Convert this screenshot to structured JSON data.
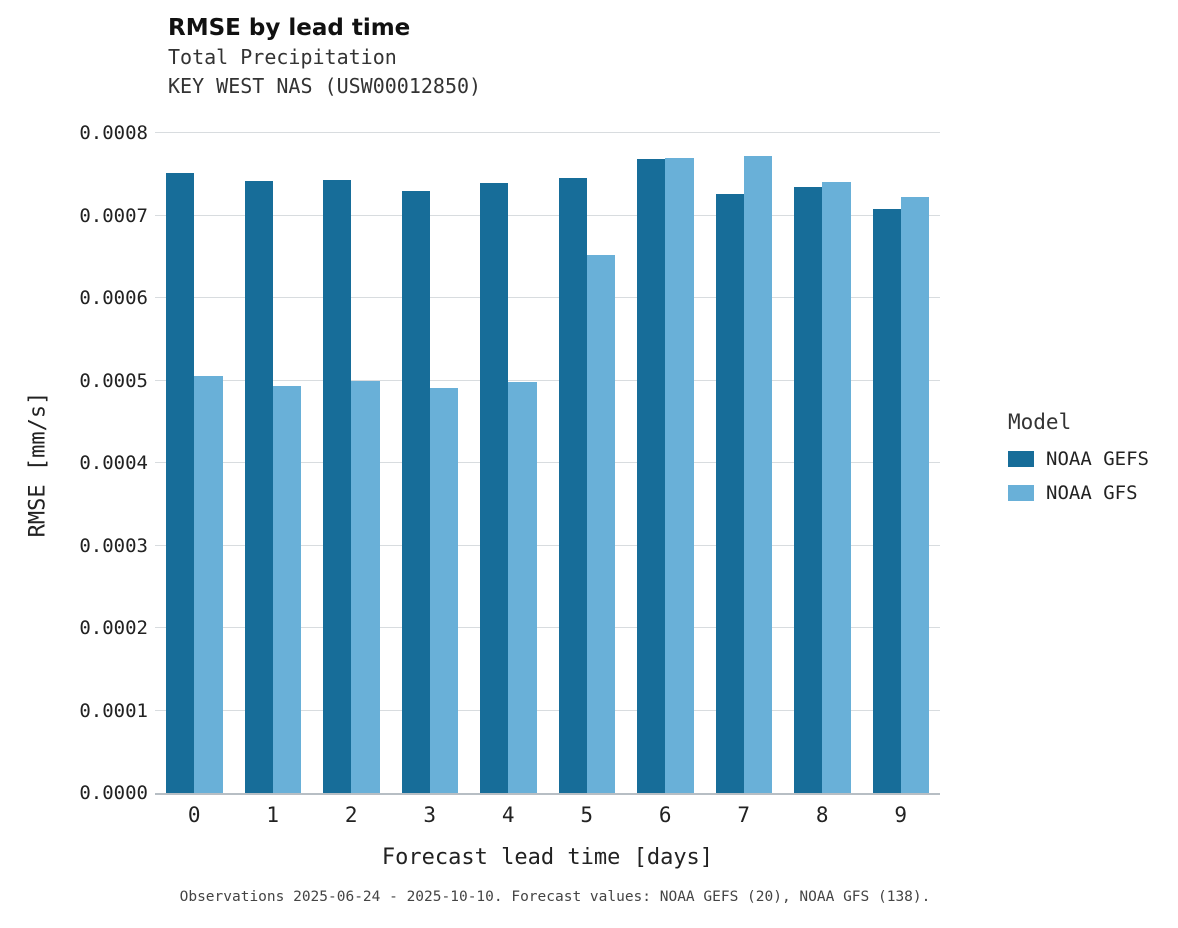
{
  "header": {
    "title": "RMSE by lead time",
    "subtitle1": "Total Precipitation",
    "subtitle2": "KEY WEST NAS (USW00012850)"
  },
  "footer": {
    "note": "Observations 2025-06-24 - 2025-10-10. Forecast values: NOAA GEFS (20), NOAA GFS (138)."
  },
  "legend": {
    "title": "Model",
    "entries": [
      {
        "label": "NOAA GEFS",
        "color": "#176d99"
      },
      {
        "label": "NOAA GFS",
        "color": "#69b0d8"
      }
    ]
  },
  "colors": {
    "gefs": "#176d99",
    "gfs": "#69b0d8",
    "gridline": "#d8dcdf",
    "axis": "#b7bec4"
  },
  "chart_data": {
    "type": "bar",
    "title": "RMSE by lead time",
    "subtitle": "Total Precipitation — KEY WEST NAS (USW00012850)",
    "xlabel": "Forecast lead time [days]",
    "ylabel": "RMSE [mm/s]",
    "categories": [
      "0",
      "1",
      "2",
      "3",
      "4",
      "5",
      "6",
      "7",
      "8",
      "9"
    ],
    "series": [
      {
        "name": "NOAA GEFS",
        "color": "#176d99",
        "values": [
          0.000751,
          0.000742,
          0.000743,
          0.00073,
          0.000739,
          0.000745,
          0.000768,
          0.000726,
          0.000735,
          0.000708
        ]
      },
      {
        "name": "NOAA GFS",
        "color": "#69b0d8",
        "values": [
          0.000505,
          0.000493,
          0.0005,
          0.000491,
          0.000498,
          0.000652,
          0.00077,
          0.000772,
          0.000741,
          0.000722
        ]
      }
    ],
    "ylim": [
      0.0,
      0.0008
    ],
    "ytick_labels": [
      "0.0000",
      "0.0001",
      "0.0002",
      "0.0003",
      "0.0004",
      "0.0005",
      "0.0006",
      "0.0007",
      "0.0008"
    ],
    "grid": true,
    "legend_position": "right"
  }
}
